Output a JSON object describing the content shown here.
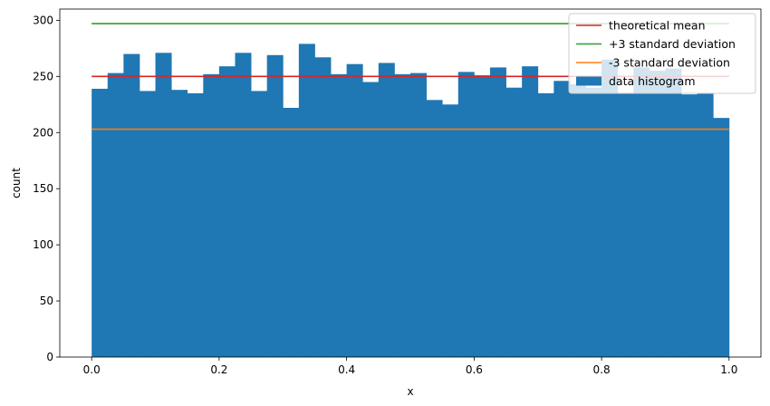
{
  "chart_data": {
    "type": "bar",
    "xlabel": "x",
    "ylabel": "count",
    "xlim": [
      -0.05,
      1.05
    ],
    "ylim": [
      0,
      310
    ],
    "xticks": [
      0.0,
      0.2,
      0.4,
      0.6,
      0.8,
      1.0
    ],
    "xtick_labels": [
      "0.0",
      "0.2",
      "0.4",
      "0.6",
      "0.8",
      "1.0"
    ],
    "yticks": [
      0,
      50,
      100,
      150,
      200,
      250,
      300
    ],
    "ytick_labels": [
      "0",
      "50",
      "100",
      "150",
      "200",
      "250",
      "300"
    ],
    "histogram": {
      "name": "data histogram",
      "color": "#1f77b4",
      "bin_start": 0.0,
      "bin_end": 1.0,
      "counts": [
        239,
        253,
        270,
        237,
        271,
        238,
        235,
        252,
        259,
        271,
        237,
        269,
        222,
        279,
        267,
        252,
        261,
        245,
        262,
        252,
        253,
        229,
        225,
        254,
        251,
        258,
        240,
        259,
        235,
        246,
        243,
        240,
        265,
        235,
        258,
        255,
        257,
        234,
        235,
        213
      ]
    },
    "lines": [
      {
        "name": "theoretical mean",
        "color": "#d62728",
        "y": 250,
        "x_start": 0.0,
        "x_end": 1.0
      },
      {
        "name": "+3 standard deviation",
        "color": "#2ca02c",
        "y": 297,
        "x_start": 0.0,
        "x_end": 1.0
      },
      {
        "name": "-3 standard deviation",
        "color": "#ff7f0e",
        "y": 203,
        "x_start": 0.0,
        "x_end": 1.0
      }
    ],
    "legend_position": "top-right",
    "grid": false
  }
}
